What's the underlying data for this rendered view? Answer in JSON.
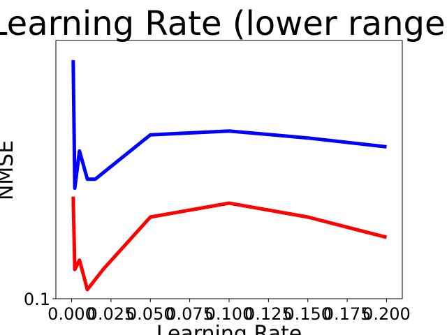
{
  "chart_data": {
    "type": "line",
    "title": "Learning Rate (lower range)",
    "xlabel": "Learning Rate",
    "ylabel": "NMSE",
    "yscale": "log",
    "xlim": [
      -0.01,
      0.21
    ],
    "ylim": [
      0.1,
      0.4
    ],
    "grid": false,
    "x_ticks": [
      0.0,
      0.025,
      0.05,
      0.075,
      0.1,
      0.125,
      0.15,
      0.175,
      0.2
    ],
    "x_tick_labels": [
      "0.000",
      "0.025",
      "0.050",
      "0.075",
      "0.100",
      "0.125",
      "0.150",
      "0.175",
      "0.200"
    ],
    "y_ticks": [
      0.1
    ],
    "y_tick_labels": [
      "0.1"
    ],
    "series": [
      {
        "color": "#0000ff",
        "x": [
          0.001,
          0.002,
          0.005,
          0.01,
          0.015,
          0.05,
          0.1,
          0.15,
          0.2
        ],
        "y": [
          0.36,
          0.181,
          0.221,
          0.19,
          0.19,
          0.241,
          0.246,
          0.237,
          0.226
        ]
      },
      {
        "color": "#ff0000",
        "x": [
          0.001,
          0.002,
          0.005,
          0.01,
          0.02,
          0.05,
          0.1,
          0.15,
          0.2
        ],
        "y": [
          0.173,
          0.117,
          0.123,
          0.105,
          0.117,
          0.155,
          0.167,
          0.155,
          0.139
        ]
      }
    ]
  }
}
